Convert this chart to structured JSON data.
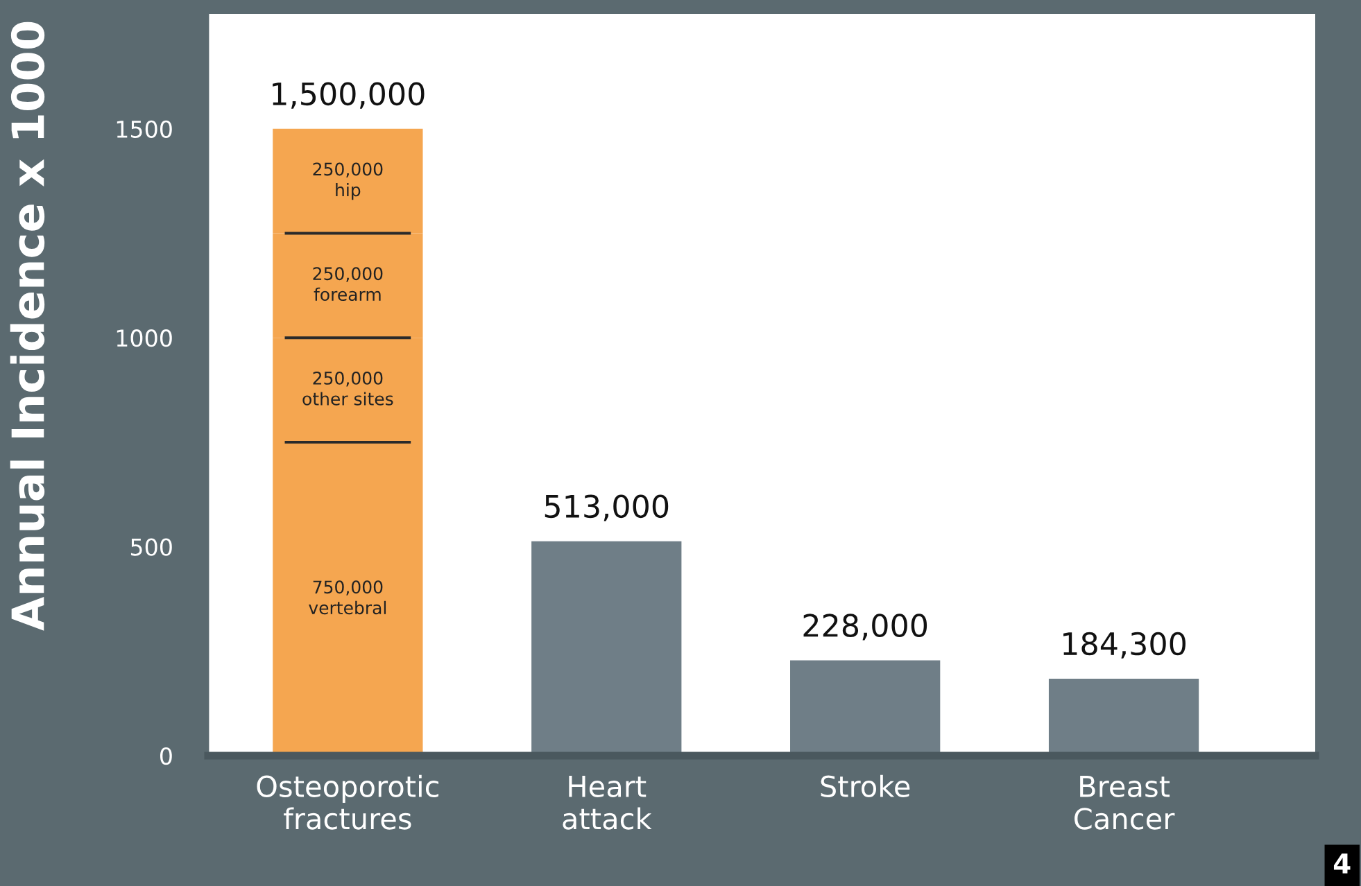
{
  "chart_data": {
    "type": "bar",
    "ylabel": "Annual Incidence x 1000",
    "categories": [
      "Osteoporotic\nfractures",
      "Heart\nattack",
      "Stroke",
      "Breast\nCancer"
    ],
    "stacked": true,
    "series": [
      {
        "colors": [
          "#f5a650",
          "#6f7e87",
          "#6f7e87",
          "#6f7e87"
        ],
        "values": [
          750,
          513,
          228,
          184.3
        ]
      },
      {
        "color": "#f5a650",
        "values": [
          250,
          null,
          null,
          null
        ]
      },
      {
        "color": "#f5a650",
        "values": [
          250,
          null,
          null,
          null
        ]
      },
      {
        "color": "#f5a650",
        "values": [
          250,
          null,
          null,
          null
        ]
      }
    ],
    "totals": [
      "1,500,000",
      "513,000",
      "228,000",
      "184,300"
    ],
    "ylim": [
      0,
      1775
    ],
    "yticks": [
      0,
      500,
      1000,
      1500
    ],
    "annotations": [
      "750,000\nvertebral",
      "250,000\nother sites",
      "250,000\nforearm",
      "250,000\nhip",
      "4"
    ]
  }
}
